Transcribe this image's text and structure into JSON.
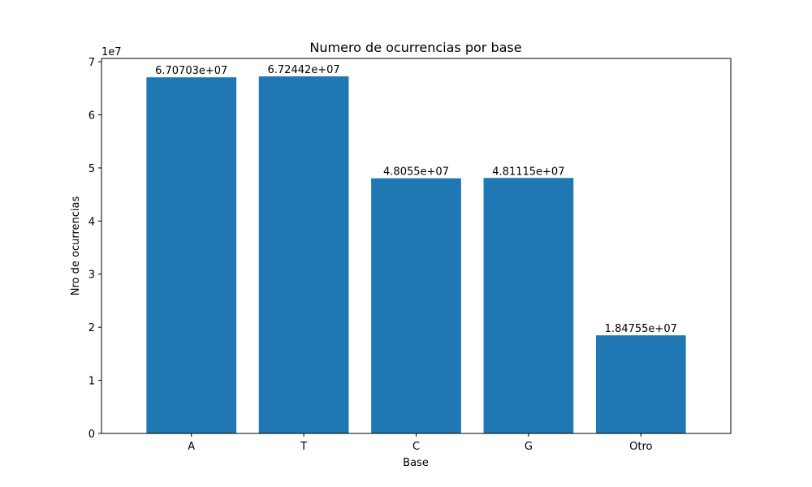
{
  "chart_data": {
    "type": "bar",
    "title": "Numero de ocurrencias por base",
    "xlabel": "Base",
    "ylabel": "Nro de ocurrencias",
    "y_offset_label": "1e7",
    "categories": [
      "A",
      "T",
      "C",
      "G",
      "Otro"
    ],
    "values": [
      67070300,
      67244200,
      48055000,
      48111500,
      18475500
    ],
    "value_labels": [
      "6.70703e+07",
      "6.72442e+07",
      "4.8055e+07",
      "4.81115e+07",
      "1.84755e+07"
    ],
    "ylim": [
      0,
      70622100
    ],
    "yticks": [
      0,
      10000000,
      20000000,
      30000000,
      40000000,
      50000000,
      60000000,
      70000000
    ],
    "ytick_labels": [
      "0",
      "1",
      "2",
      "3",
      "4",
      "5",
      "6",
      "7"
    ],
    "bar_color": "#1f77b4",
    "grid": false,
    "legend": "none"
  }
}
